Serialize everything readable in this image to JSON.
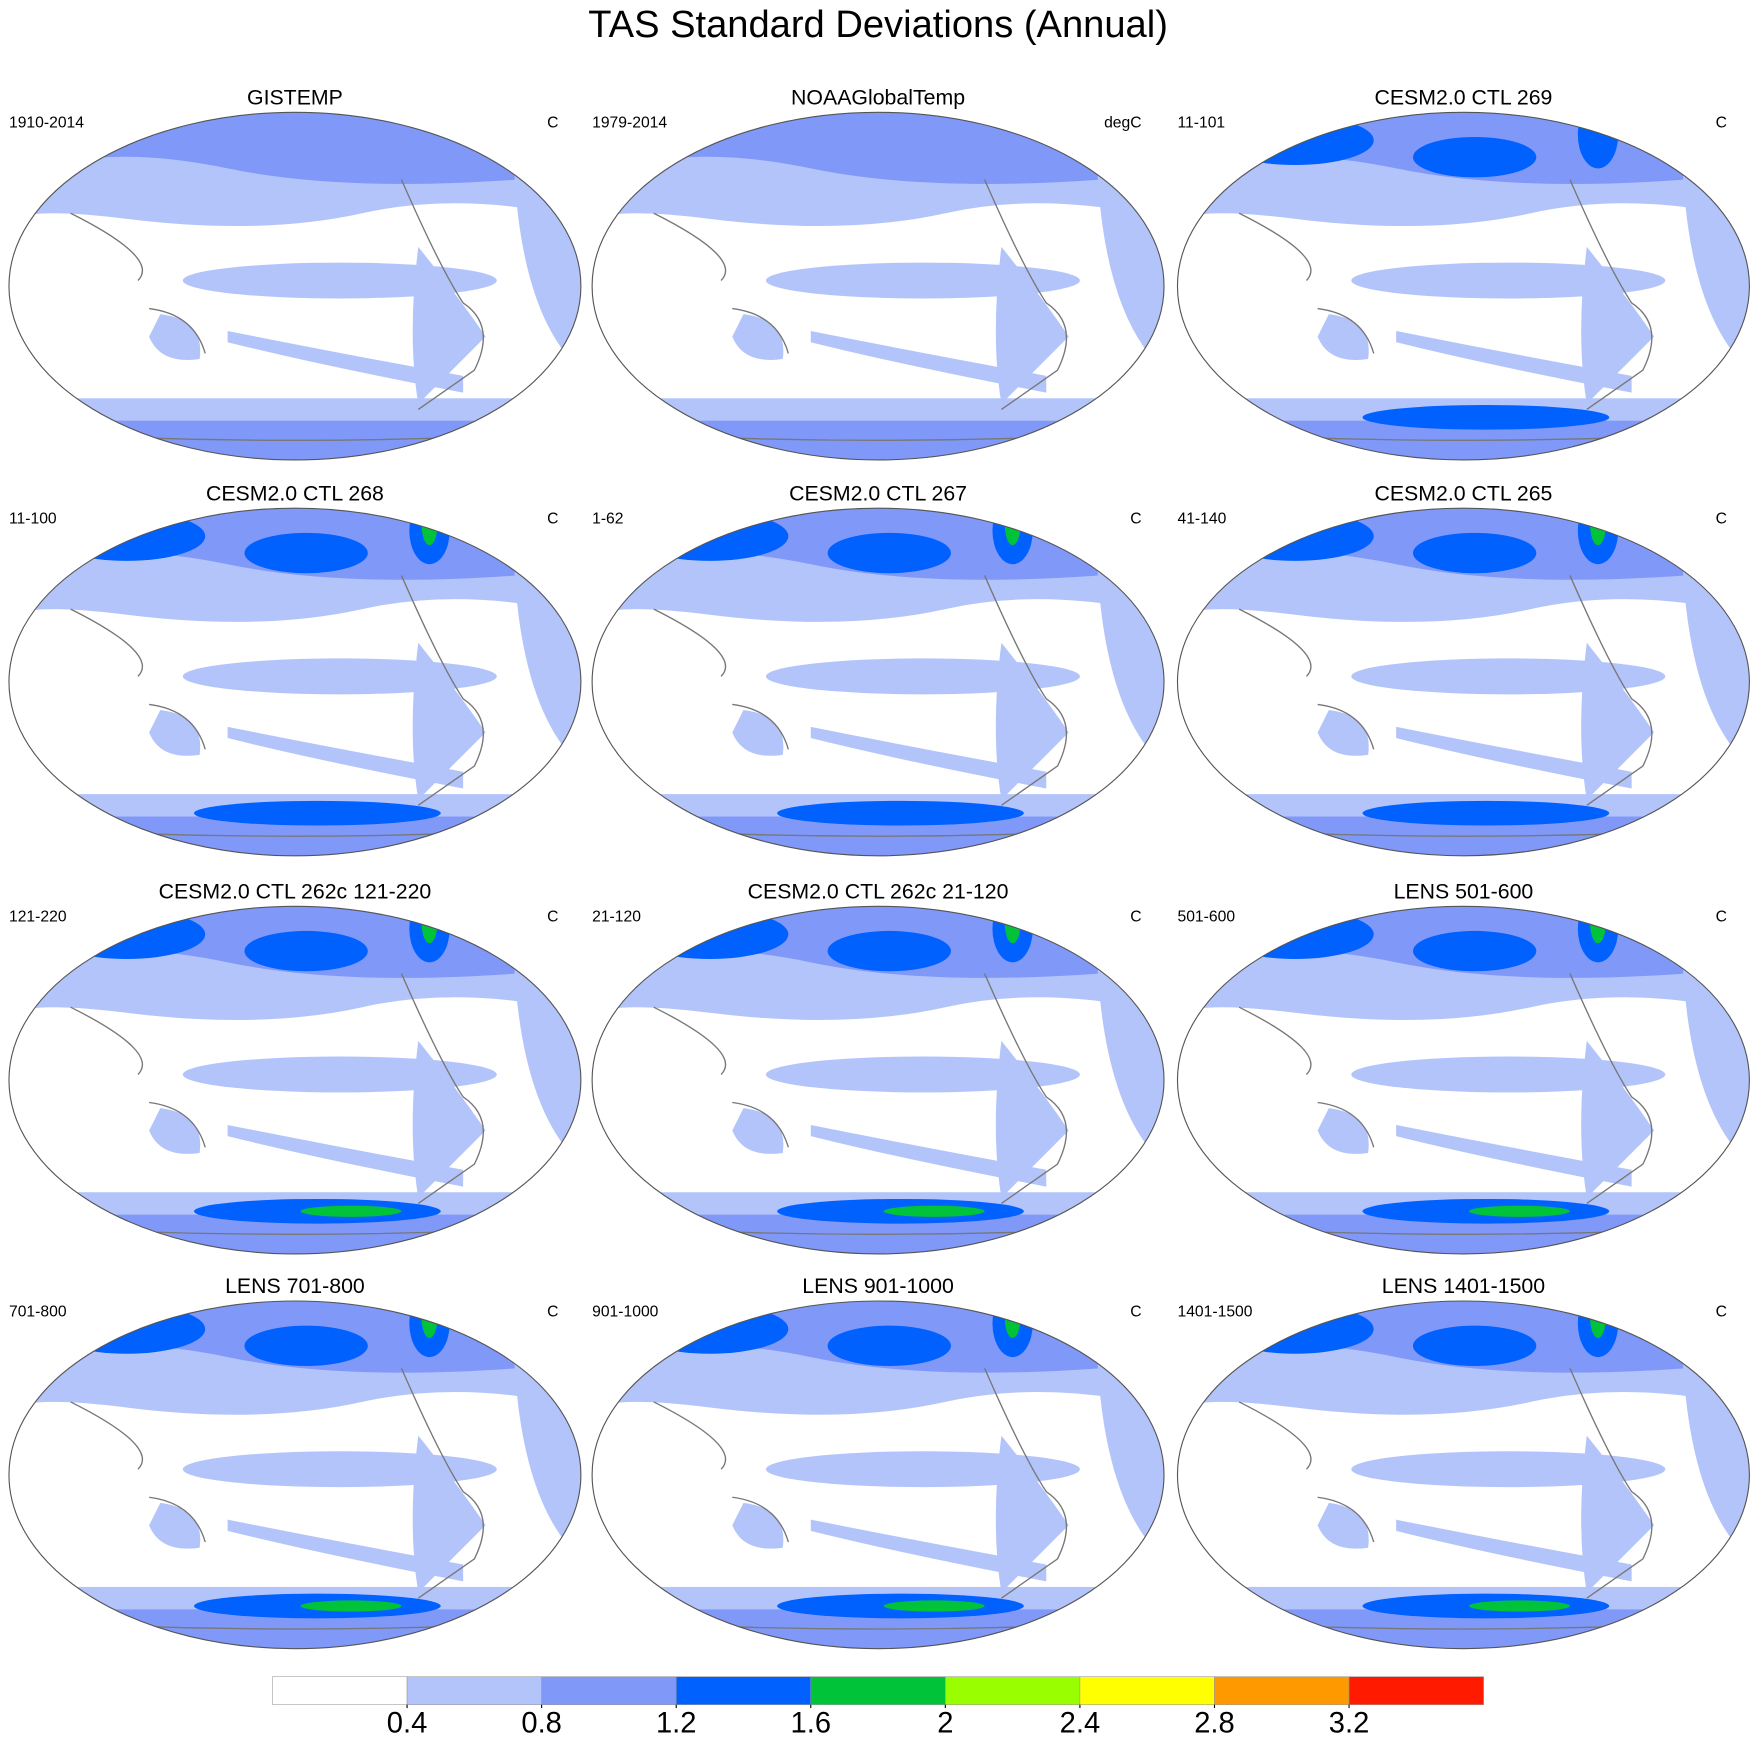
{
  "title": "TAS Standard Deviations (Annual)",
  "panels": [
    {
      "title": "GISTEMP",
      "period": "1910-2014",
      "units": "C"
    },
    {
      "title": "NOAAGlobalTemp",
      "period": "1979-2014",
      "units": "degC"
    },
    {
      "title": "CESM2.0 CTL 269",
      "period": "11-101",
      "units": "C"
    },
    {
      "title": "CESM2.0 CTL 268",
      "period": "11-100",
      "units": "C"
    },
    {
      "title": "CESM2.0 CTL 267",
      "period": "1-62",
      "units": "C"
    },
    {
      "title": "CESM2.0 CTL 265",
      "period": "41-140",
      "units": "C"
    },
    {
      "title": "CESM2.0 CTL 262c 121-220",
      "period": "121-220",
      "units": "C"
    },
    {
      "title": "CESM2.0 CTL 262c 21-120",
      "period": "21-120",
      "units": "C"
    },
    {
      "title": "LENS 501-600",
      "period": "501-600",
      "units": "C"
    },
    {
      "title": "LENS 701-800",
      "period": "701-800",
      "units": "C"
    },
    {
      "title": "LENS 901-1000",
      "period": "901-1000",
      "units": "C"
    },
    {
      "title": "LENS 1401-1500",
      "period": "1401-1500",
      "units": "C"
    }
  ],
  "colorbar": {
    "colors": [
      "#ffffff",
      "#b3c4fa",
      "#8099f8",
      "#0061ff",
      "#00c33a",
      "#99ff00",
      "#ffff00",
      "#ff9900",
      "#ff1a00"
    ],
    "levels": [
      0.4,
      0.8,
      1.2,
      1.6,
      2,
      2.4,
      2.8,
      3.2
    ],
    "range": [
      0,
      3.6
    ]
  }
}
